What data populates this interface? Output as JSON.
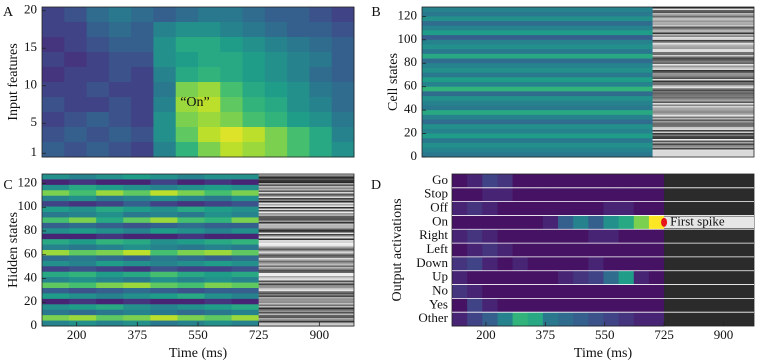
{
  "chart_data": [
    {
      "type": "heatmap",
      "panel": "A",
      "ylabel": "Input features",
      "ylim": [
        0.5,
        20.5
      ],
      "yticks": [
        1,
        5,
        10,
        15,
        20
      ],
      "annotation": "“On”",
      "z": [
        [
          0.2,
          0.25,
          0.35,
          0.4,
          0.35,
          0.3,
          0.35,
          0.4,
          0.4,
          0.35,
          0.3,
          0.3,
          0.25,
          0.2
        ],
        [
          0.2,
          0.2,
          0.3,
          0.35,
          0.3,
          0.45,
          0.5,
          0.5,
          0.45,
          0.4,
          0.35,
          0.3,
          0.3,
          0.25
        ],
        [
          0.15,
          0.2,
          0.25,
          0.3,
          0.3,
          0.5,
          0.6,
          0.6,
          0.55,
          0.5,
          0.45,
          0.4,
          0.35,
          0.3
        ],
        [
          0.2,
          0.15,
          0.2,
          0.25,
          0.25,
          0.5,
          0.55,
          0.6,
          0.6,
          0.55,
          0.5,
          0.45,
          0.4,
          0.3
        ],
        [
          0.15,
          0.2,
          0.2,
          0.25,
          0.2,
          0.45,
          0.6,
          0.65,
          0.6,
          0.55,
          0.5,
          0.45,
          0.35,
          0.3
        ],
        [
          0.2,
          0.2,
          0.25,
          0.2,
          0.2,
          0.4,
          0.8,
          0.85,
          0.7,
          0.6,
          0.55,
          0.5,
          0.4,
          0.35
        ],
        [
          0.25,
          0.2,
          0.2,
          0.25,
          0.2,
          0.45,
          0.85,
          0.9,
          0.75,
          0.65,
          0.6,
          0.5,
          0.45,
          0.35
        ],
        [
          0.2,
          0.25,
          0.3,
          0.25,
          0.2,
          0.5,
          0.8,
          0.85,
          0.8,
          0.7,
          0.65,
          0.55,
          0.5,
          0.4
        ],
        [
          0.25,
          0.3,
          0.25,
          0.3,
          0.25,
          0.5,
          0.75,
          0.9,
          0.95,
          0.9,
          0.8,
          0.7,
          0.6,
          0.45
        ],
        [
          0.3,
          0.25,
          0.3,
          0.25,
          0.2,
          0.45,
          0.65,
          0.8,
          0.9,
          0.85,
          0.8,
          0.7,
          0.6,
          0.5
        ]
      ]
    },
    {
      "type": "heatmap",
      "panel": "B",
      "ylabel": "Cell states",
      "ylim": [
        0,
        128
      ],
      "yticks": [
        0,
        20,
        40,
        60,
        80,
        100,
        120
      ],
      "xlim": [
        100,
        1000
      ],
      "z": [
        [
          0.45
        ],
        [
          0.4
        ],
        [
          0.5
        ],
        [
          0.35
        ],
        [
          0.45
        ],
        [
          0.55
        ],
        [
          0.3
        ],
        [
          0.45
        ],
        [
          0.5
        ],
        [
          0.4
        ],
        [
          0.6
        ],
        [
          0.35
        ],
        [
          0.45
        ],
        [
          0.5
        ],
        [
          0.4
        ],
        [
          0.55
        ],
        [
          0.45
        ],
        [
          0.65
        ],
        [
          0.35
        ],
        [
          0.5
        ],
        [
          0.45
        ],
        [
          0.4
        ],
        [
          0.6
        ],
        [
          0.45
        ],
        [
          0.35
        ],
        [
          0.5
        ],
        [
          0.45
        ],
        [
          0.55
        ],
        [
          0.4
        ],
        [
          0.5
        ],
        [
          0.45
        ],
        [
          0.4
        ]
      ]
    },
    {
      "type": "heatmap",
      "panel": "C",
      "ylabel": "Hidden states",
      "xlabel": "Time (ms)",
      "ylim": [
        0,
        128
      ],
      "yticks": [
        0,
        20,
        40,
        60,
        80,
        100,
        120
      ],
      "xlim": [
        100,
        1000
      ],
      "xticks": [
        200,
        375,
        550,
        725,
        900
      ],
      "z": [
        [
          0.5,
          0.45,
          0.5,
          0.55,
          0.5,
          0.45,
          0.5,
          0.5
        ],
        [
          0.1,
          0.15,
          0.1,
          0.1,
          0.2,
          0.1,
          0.15,
          0.1
        ],
        [
          0.5,
          0.6,
          0.55,
          0.5,
          0.45,
          0.5,
          0.55,
          0.5
        ],
        [
          0.8,
          0.7,
          0.85,
          0.75,
          0.9,
          0.8,
          0.7,
          0.8
        ],
        [
          0.45,
          0.5,
          0.4,
          0.45,
          0.5,
          0.45,
          0.4,
          0.5
        ],
        [
          0.2,
          0.15,
          0.2,
          0.3,
          0.2,
          0.15,
          0.2,
          0.25
        ],
        [
          0.55,
          0.5,
          0.6,
          0.55,
          0.5,
          0.6,
          0.55,
          0.5
        ],
        [
          0.4,
          0.45,
          0.5,
          0.4,
          0.45,
          0.4,
          0.5,
          0.45
        ],
        [
          0.7,
          0.8,
          0.6,
          0.75,
          0.85,
          0.7,
          0.65,
          0.8
        ],
        [
          0.3,
          0.35,
          0.3,
          0.25,
          0.3,
          0.35,
          0.3,
          0.3
        ],
        [
          0.5,
          0.55,
          0.5,
          0.45,
          0.55,
          0.5,
          0.45,
          0.5
        ],
        [
          0.1,
          0.1,
          0.15,
          0.1,
          0.1,
          0.15,
          0.1,
          0.1
        ],
        [
          0.6,
          0.55,
          0.65,
          0.6,
          0.5,
          0.55,
          0.6,
          0.65
        ],
        [
          0.45,
          0.4,
          0.45,
          0.5,
          0.45,
          0.4,
          0.45,
          0.4
        ],
        [
          0.85,
          0.75,
          0.8,
          0.9,
          0.7,
          0.8,
          0.85,
          0.75
        ],
        [
          0.35,
          0.4,
          0.35,
          0.3,
          0.4,
          0.35,
          0.3,
          0.35
        ],
        [
          0.5,
          0.45,
          0.55,
          0.5,
          0.45,
          0.5,
          0.55,
          0.5
        ],
        [
          0.2,
          0.25,
          0.2,
          0.15,
          0.25,
          0.2,
          0.2,
          0.25
        ],
        [
          0.6,
          0.65,
          0.55,
          0.6,
          0.7,
          0.6,
          0.55,
          0.6
        ],
        [
          0.45,
          0.5,
          0.45,
          0.4,
          0.5,
          0.45,
          0.5,
          0.45
        ],
        [
          0.75,
          0.7,
          0.8,
          0.85,
          0.75,
          0.7,
          0.8,
          0.75
        ],
        [
          0.3,
          0.25,
          0.3,
          0.35,
          0.3,
          0.25,
          0.3,
          0.3
        ],
        [
          0.55,
          0.5,
          0.45,
          0.5,
          0.55,
          0.6,
          0.5,
          0.45
        ],
        [
          0.1,
          0.15,
          0.1,
          0.15,
          0.1,
          0.1,
          0.15,
          0.1
        ],
        [
          0.5,
          0.55,
          0.6,
          0.5,
          0.45,
          0.5,
          0.55,
          0.6
        ],
        [
          0.4,
          0.35,
          0.4,
          0.45,
          0.4,
          0.35,
          0.4,
          0.45
        ],
        [
          0.8,
          0.85,
          0.75,
          0.8,
          0.9,
          0.8,
          0.75,
          0.85
        ],
        [
          0.45,
          0.5,
          0.45,
          0.5,
          0.4,
          0.45,
          0.5,
          0.45
        ]
      ]
    },
    {
      "type": "heatmap",
      "panel": "D",
      "ylabel": "Output activations",
      "xlabel": "Time (ms)",
      "xlim": [
        100,
        990
      ],
      "xticks": [
        200,
        375,
        550,
        725,
        900
      ],
      "categories": [
        "Go",
        "Stop",
        "Off",
        "On",
        "Right",
        "Left",
        "Down",
        "Up",
        "No",
        "Yes",
        "Other"
      ],
      "annotation": "First spike",
      "z": [
        [
          0.05,
          0.1,
          0.2,
          0.15,
          0.05,
          0.05,
          0.05,
          0.05,
          0.05,
          0.05,
          0.05,
          0.05,
          0.05,
          0.05
        ],
        [
          0.05,
          0.05,
          0.1,
          0.1,
          0.05,
          0.05,
          0.05,
          0.05,
          0.05,
          0.05,
          0.05,
          0.05,
          0.05,
          0.05
        ],
        [
          0.1,
          0.15,
          0.1,
          0.05,
          0.05,
          0.05,
          0.05,
          0.05,
          0.05,
          0.05,
          0.1,
          0.1,
          0.05,
          0.05
        ],
        [
          0.05,
          0.05,
          0.05,
          0.05,
          0.05,
          0.05,
          0.1,
          0.3,
          0.45,
          0.3,
          0.5,
          0.6,
          0.8,
          1.0
        ],
        [
          0.1,
          0.15,
          0.1,
          0.05,
          0.05,
          0.05,
          0.05,
          0.05,
          0.05,
          0.1,
          0.1,
          0.05,
          0.05,
          0.05
        ],
        [
          0.05,
          0.1,
          0.15,
          0.1,
          0.05,
          0.05,
          0.05,
          0.05,
          0.05,
          0.05,
          0.05,
          0.05,
          0.05,
          0.05
        ],
        [
          0.15,
          0.2,
          0.1,
          0.05,
          0.1,
          0.05,
          0.05,
          0.05,
          0.05,
          0.1,
          0.05,
          0.05,
          0.05,
          0.05
        ],
        [
          0.1,
          0.05,
          0.05,
          0.05,
          0.05,
          0.05,
          0.05,
          0.1,
          0.15,
          0.2,
          0.35,
          0.55,
          0.1,
          0.05
        ],
        [
          0.15,
          0.1,
          0.05,
          0.05,
          0.05,
          0.05,
          0.05,
          0.05,
          0.05,
          0.05,
          0.05,
          0.05,
          0.05,
          0.05
        ],
        [
          0.05,
          0.2,
          0.1,
          0.05,
          0.05,
          0.05,
          0.05,
          0.05,
          0.05,
          0.05,
          0.05,
          0.05,
          0.05,
          0.05
        ],
        [
          0.1,
          0.2,
          0.3,
          0.45,
          0.65,
          0.6,
          0.4,
          0.35,
          0.3,
          0.25,
          0.2,
          0.15,
          0.1,
          0.1
        ]
      ]
    }
  ]
}
